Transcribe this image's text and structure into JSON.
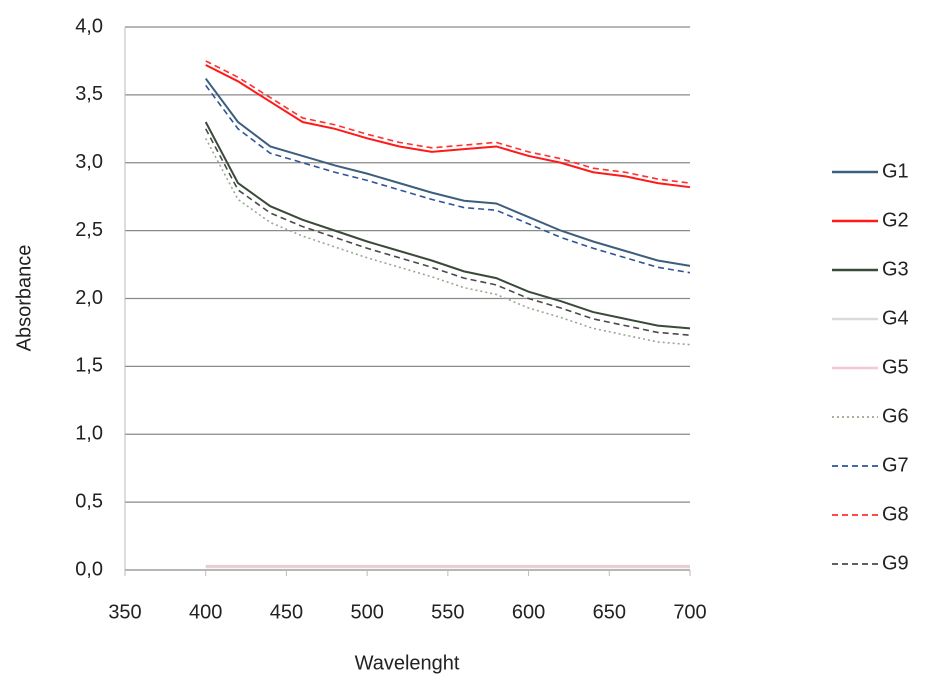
{
  "chart_data": {
    "type": "line",
    "x_label": "Wavelenght",
    "y_label": "Absorbance",
    "x": [
      400,
      420,
      440,
      460,
      480,
      500,
      520,
      540,
      560,
      580,
      600,
      620,
      640,
      660,
      680,
      700
    ],
    "xlim": [
      350,
      700
    ],
    "xticks": [
      350,
      400,
      450,
      500,
      550,
      600,
      650,
      700
    ],
    "ylim": [
      0,
      4
    ],
    "yticks": [
      {
        "value": 0,
        "label": "0,0"
      },
      {
        "value": 0.5,
        "label": "0,5"
      },
      {
        "value": 1,
        "label": "1,0"
      },
      {
        "value": 1.5,
        "label": "1,5"
      },
      {
        "value": 2,
        "label": "2,0"
      },
      {
        "value": 2.5,
        "label": "2,5"
      },
      {
        "value": 3,
        "label": "3,0"
      },
      {
        "value": 3.5,
        "label": "3,5"
      },
      {
        "value": 4,
        "label": "4,0"
      }
    ],
    "grid": true,
    "legend": "right",
    "series": [
      {
        "name": "G1",
        "color": "#3d5f7e",
        "style": "solid",
        "values": [
          3.62,
          3.3,
          3.12,
          3.05,
          2.98,
          2.92,
          2.85,
          2.78,
          2.72,
          2.7,
          2.6,
          2.5,
          2.42,
          2.35,
          2.28,
          2.24
        ]
      },
      {
        "name": "G2",
        "color": "#ff1a1a",
        "style": "solid",
        "values": [
          3.72,
          3.6,
          3.45,
          3.3,
          3.25,
          3.18,
          3.12,
          3.08,
          3.1,
          3.12,
          3.05,
          3.0,
          2.93,
          2.9,
          2.85,
          2.82
        ]
      },
      {
        "name": "G3",
        "color": "#3a4a3a",
        "style": "solid",
        "values": [
          3.3,
          2.85,
          2.68,
          2.58,
          2.5,
          2.42,
          2.35,
          2.28,
          2.2,
          2.15,
          2.05,
          1.98,
          1.9,
          1.85,
          1.8,
          1.78
        ]
      },
      {
        "name": "G4",
        "color": "#d8dcd8",
        "style": "solid",
        "values": [
          0.02,
          0.02,
          0.02,
          0.02,
          0.02,
          0.02,
          0.02,
          0.02,
          0.02,
          0.02,
          0.02,
          0.02,
          0.02,
          0.02,
          0.02,
          0.02
        ]
      },
      {
        "name": "G5",
        "color": "#f4c8d0",
        "style": "solid",
        "values": [
          0.03,
          0.03,
          0.03,
          0.03,
          0.03,
          0.03,
          0.03,
          0.03,
          0.03,
          0.03,
          0.03,
          0.03,
          0.03,
          0.03,
          0.03,
          0.03
        ]
      },
      {
        "name": "G6",
        "color": "#9aa890",
        "style": "dotted",
        "values": [
          3.18,
          2.73,
          2.56,
          2.46,
          2.38,
          2.3,
          2.23,
          2.16,
          2.08,
          2.03,
          1.93,
          1.86,
          1.78,
          1.73,
          1.68,
          1.66
        ]
      },
      {
        "name": "G7",
        "color": "#2f5597",
        "style": "dashed",
        "values": [
          3.57,
          3.25,
          3.07,
          3.0,
          2.93,
          2.87,
          2.8,
          2.73,
          2.67,
          2.65,
          2.55,
          2.45,
          2.37,
          2.3,
          2.23,
          2.19
        ]
      },
      {
        "name": "G8",
        "color": "#ff3030",
        "style": "dashed",
        "values": [
          3.75,
          3.63,
          3.48,
          3.33,
          3.28,
          3.21,
          3.15,
          3.11,
          3.13,
          3.15,
          3.08,
          3.03,
          2.96,
          2.93,
          2.88,
          2.85
        ]
      },
      {
        "name": "G9",
        "color": "#4a4a4a",
        "style": "dashed",
        "values": [
          3.25,
          2.8,
          2.63,
          2.53,
          2.45,
          2.37,
          2.3,
          2.23,
          2.15,
          2.1,
          2.0,
          1.93,
          1.85,
          1.8,
          1.75,
          1.73
        ]
      }
    ]
  }
}
